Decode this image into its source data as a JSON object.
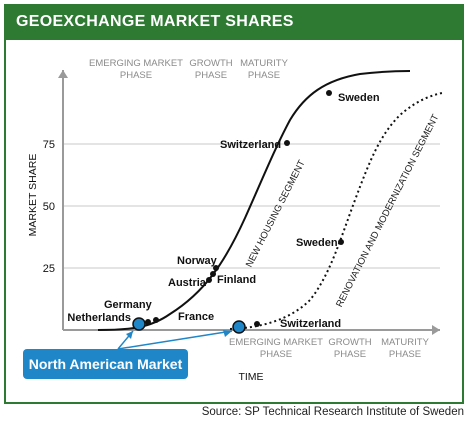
{
  "title": "GEOEXCHANGE MARKET SHARES",
  "source": "Source: SP Technical Research Institute of Sweden",
  "callout": "North American Market",
  "colors": {
    "frame": "#2e7a33",
    "callout": "#1f86c8",
    "curve": "#111111"
  },
  "chart_data": {
    "type": "line",
    "ylabel": "MARKET SHARE",
    "xlabel": "TIME",
    "ylim": [
      0,
      100
    ],
    "yticks": [
      25,
      50,
      75
    ],
    "grid": true,
    "phases_top": [
      {
        "lines": [
          "EMERGING MARKET",
          "PHASE"
        ]
      },
      {
        "lines": [
          "GROWTH",
          "PHASE"
        ]
      },
      {
        "lines": [
          "MATURITY",
          "PHASE"
        ]
      }
    ],
    "phases_bottom": [
      {
        "lines": [
          "EMERGING MARKET",
          "PHASE"
        ]
      },
      {
        "lines": [
          "GROWTH",
          "PHASE"
        ]
      },
      {
        "lines": [
          "MATURITY",
          "PHASE"
        ]
      }
    ],
    "series": [
      {
        "name": "NEW HOUSING SEGMENT",
        "style": "solid",
        "points": [
          {
            "label": "Netherlands",
            "y": 1
          },
          {
            "label": "Germany",
            "y": 2
          },
          {
            "label": "France",
            "y": 6
          },
          {
            "label": "Austria",
            "y": 19
          },
          {
            "label": "Finland",
            "y": 21
          },
          {
            "label": "Norway",
            "y": 24
          },
          {
            "label": "Switzerland",
            "y": 72
          },
          {
            "label": "Sweden",
            "y": 92
          }
        ]
      },
      {
        "name": "RENOVATION AND MODERNIZATION SEGMENT",
        "style": "dotted",
        "points": [
          {
            "label": "Switzerland",
            "y": 2
          },
          {
            "label": "Sweden",
            "y": 34
          }
        ]
      }
    ]
  }
}
